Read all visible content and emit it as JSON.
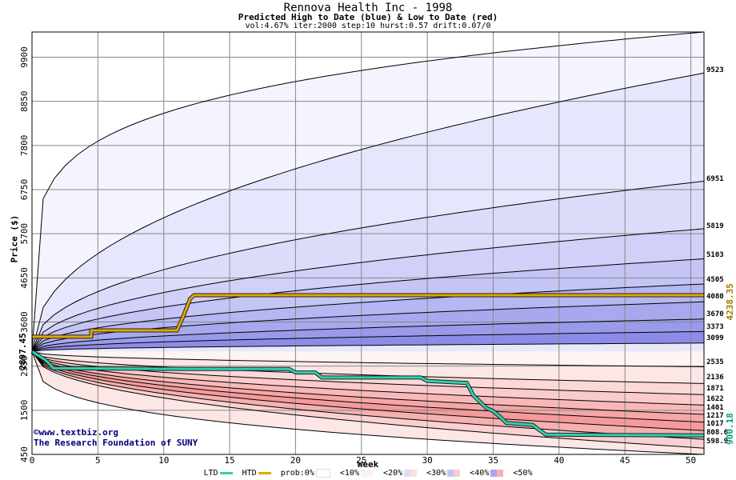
{
  "title": "Rennova Health Inc - 1998",
  "subtitle": "Predicted High to Date (blue) &  Low to Date (red)",
  "params": "vol:4.67% iter:2000 step:10 hurst:0.57 drift:0.07/0",
  "credit_line1": "©www.textbiz.org",
  "credit_line2": "The Research Foundation of SUNY",
  "legend": {
    "ltd_label": "LTD",
    "htd_label": "HTD",
    "prob_label": "prob:0%",
    "bands": [
      "<10%",
      "<20%",
      "<30%",
      "<40%",
      "<50%"
    ],
    "colors": {
      "ltd": "#2fd0b0",
      "htd": "#e0a800",
      "band_colors": [
        "#f4f4ff",
        "#dcdcfa",
        "#c4c4f5",
        "#a8a8ef",
        "#8c8ce8"
      ],
      "red_band_colors": [
        "#fff0f0",
        "#fde0e0",
        "#fbcccc",
        "#f8b0b0",
        "#f59090"
      ]
    }
  },
  "chart_data": {
    "type": "area",
    "title": "Rennova Health Inc - 1998",
    "xlabel": "Week",
    "ylabel": "Price ($)",
    "xlim": [
      0,
      51
    ],
    "ylim": [
      450,
      10500
    ],
    "x_ticks": [
      0,
      5,
      10,
      15,
      20,
      25,
      30,
      35,
      40,
      45,
      50
    ],
    "y_ticks": [
      450,
      1500,
      2550,
      3600,
      4650,
      5700,
      6750,
      7800,
      8850,
      9900
    ],
    "y_tick_labels": [
      "450",
      "1500",
      "2550",
      "3600",
      "4650",
      "5700",
      "6750",
      "7800",
      "8850",
      "9900"
    ],
    "grid": true,
    "start_price": 2897.45,
    "start_price_label": "2897.45",
    "current_high_label": "4238.35",
    "current_low_label": "900.18",
    "high_quantile_end_values": [
      9523,
      6951,
      5819,
      5103,
      4505,
      4080,
      3670,
      3373,
      3099
    ],
    "high_quantile_labels": [
      "9523",
      "6951",
      "5819",
      "5103",
      "4505",
      "4080",
      "3670",
      "3373",
      "3099"
    ],
    "low_quantile_end_values": [
      2535,
      2136,
      1871,
      1622,
      1401,
      1217,
      1017,
      808.6,
      598.9
    ],
    "low_quantile_labels": [
      "2535",
      "2136",
      "1871",
      "1622",
      "1401",
      "1217",
      "1017",
      "808.6",
      "598.9"
    ],
    "high_extreme_end": 10500,
    "low_extreme_end": 450,
    "htd": {
      "x": [
        0,
        4.5,
        4.5,
        11,
        11.5,
        12,
        12.3,
        51
      ],
      "y": [
        3250,
        3250,
        3400,
        3400,
        3750,
        4150,
        4238.35,
        4238.35
      ]
    },
    "ltd": {
      "x": [
        0,
        1,
        1.5,
        1.6,
        12,
        19.5,
        20,
        21.5,
        22,
        29.5,
        30,
        33,
        33.5,
        34,
        34.5,
        35,
        35.5,
        36,
        38,
        38.5,
        39,
        51
      ],
      "y": [
        2897.45,
        2700,
        2550,
        2500,
        2480,
        2480,
        2400,
        2400,
        2280,
        2280,
        2200,
        2150,
        1850,
        1700,
        1550,
        1480,
        1350,
        1200,
        1150,
        1030,
        920,
        900.18
      ]
    }
  }
}
